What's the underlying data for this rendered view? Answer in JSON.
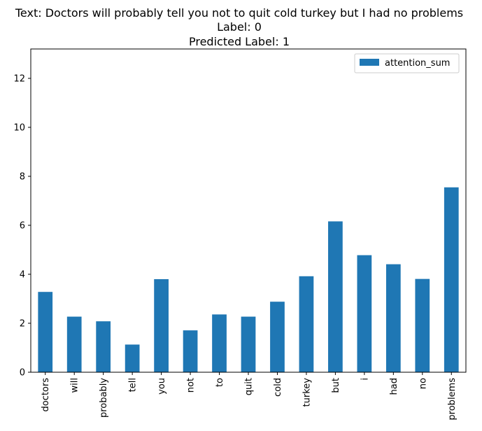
{
  "chart_data": {
    "type": "bar",
    "title_lines": [
      "Text: Doctors will probably tell you not to quit cold turkey but I had no problems",
      "Label: 0",
      "Predicted Label: 1"
    ],
    "categories": [
      "doctors",
      "will",
      "probably",
      "tell",
      "you",
      "not",
      "to",
      "quit",
      "cold",
      "turkey",
      "but",
      "i",
      "had",
      "no",
      "problems"
    ],
    "series": [
      {
        "name": "attention_sum",
        "color": "#1f77b4",
        "values": [
          3.28,
          2.27,
          2.08,
          1.13,
          3.8,
          1.71,
          2.36,
          2.27,
          2.88,
          3.92,
          6.16,
          4.78,
          4.41,
          3.81,
          7.55
        ]
      }
    ],
    "ylim": [
      0,
      13.2
    ],
    "yticks": [
      0,
      2,
      4,
      6,
      8,
      10,
      12
    ],
    "legend_position": "upper right",
    "xlabel": "",
    "ylabel": ""
  }
}
